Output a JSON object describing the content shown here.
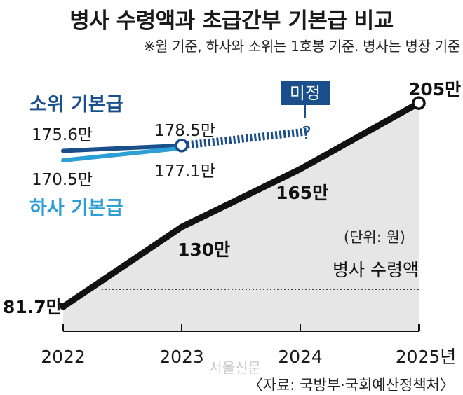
{
  "header": {
    "title": "병사 수령액과 초급간부 기본급 비교",
    "subtitle": "※월 기준, 하사와 소위는 1호봉 기준. 병사는 병장 기준"
  },
  "chart_data": {
    "type": "line",
    "x": [
      "2022",
      "2023",
      "2024",
      "2025년"
    ],
    "unit": "(단위: 원)",
    "series": [
      {
        "name": "병사 수령액",
        "values": [
          81.7,
          130,
          165,
          205
        ],
        "value_labels": [
          "81.7만",
          "130만",
          "165만",
          "205만"
        ],
        "color": "#111111",
        "fill": "#e6e6e6"
      },
      {
        "name": "소위 기본급",
        "values": [
          175.6,
          178.5,
          null,
          null
        ],
        "value_labels": [
          "175.6만",
          "178.5만"
        ],
        "color": "#1a4f8b",
        "pending_label": "?"
      },
      {
        "name": "하사 기본급",
        "values": [
          170.5,
          177.1,
          null,
          null
        ],
        "value_labels": [
          "170.5만",
          "177.1만"
        ],
        "color": "#2c9fd6"
      }
    ],
    "badge": "미정",
    "reference_line_label": "병사 수령액",
    "ylim": [
      60,
      220
    ]
  },
  "footer": {
    "watermark": "서울신문",
    "source": "〈자료: 국방부·국회예산정책처〉"
  }
}
